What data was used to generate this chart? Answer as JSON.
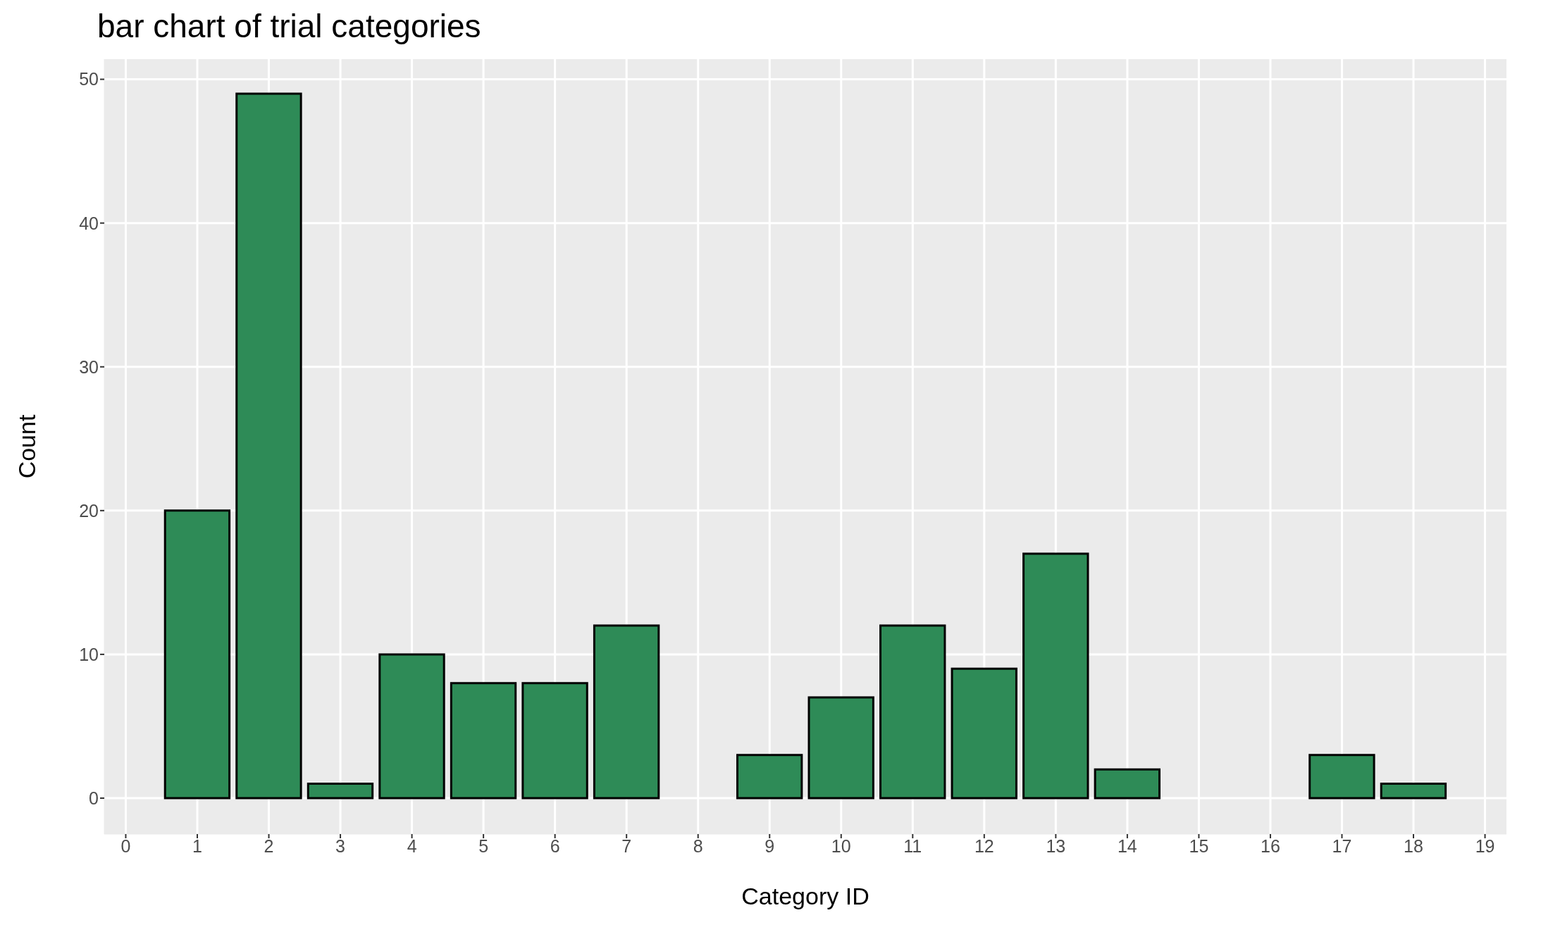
{
  "chart_data": {
    "type": "bar",
    "title": "bar chart of trial categories",
    "xlabel": "Category ID",
    "ylabel": "Count",
    "x": [
      1,
      2,
      3,
      4,
      5,
      6,
      7,
      9,
      10,
      11,
      12,
      13,
      14,
      17,
      18
    ],
    "values": [
      20,
      49,
      1,
      10,
      8,
      8,
      12,
      3,
      7,
      12,
      9,
      17,
      2,
      3,
      1
    ],
    "color": "#2e8b57",
    "xlim": [
      -0.3,
      19.3
    ],
    "xticks": [
      0,
      1,
      2,
      3,
      4,
      5,
      6,
      7,
      8,
      9,
      10,
      11,
      12,
      13,
      14,
      15,
      16,
      17,
      18,
      19
    ],
    "ylim": [
      -2.5,
      51.4
    ],
    "yticks": [
      0,
      10,
      20,
      30,
      40,
      50
    ],
    "grid": true,
    "legend": false
  }
}
